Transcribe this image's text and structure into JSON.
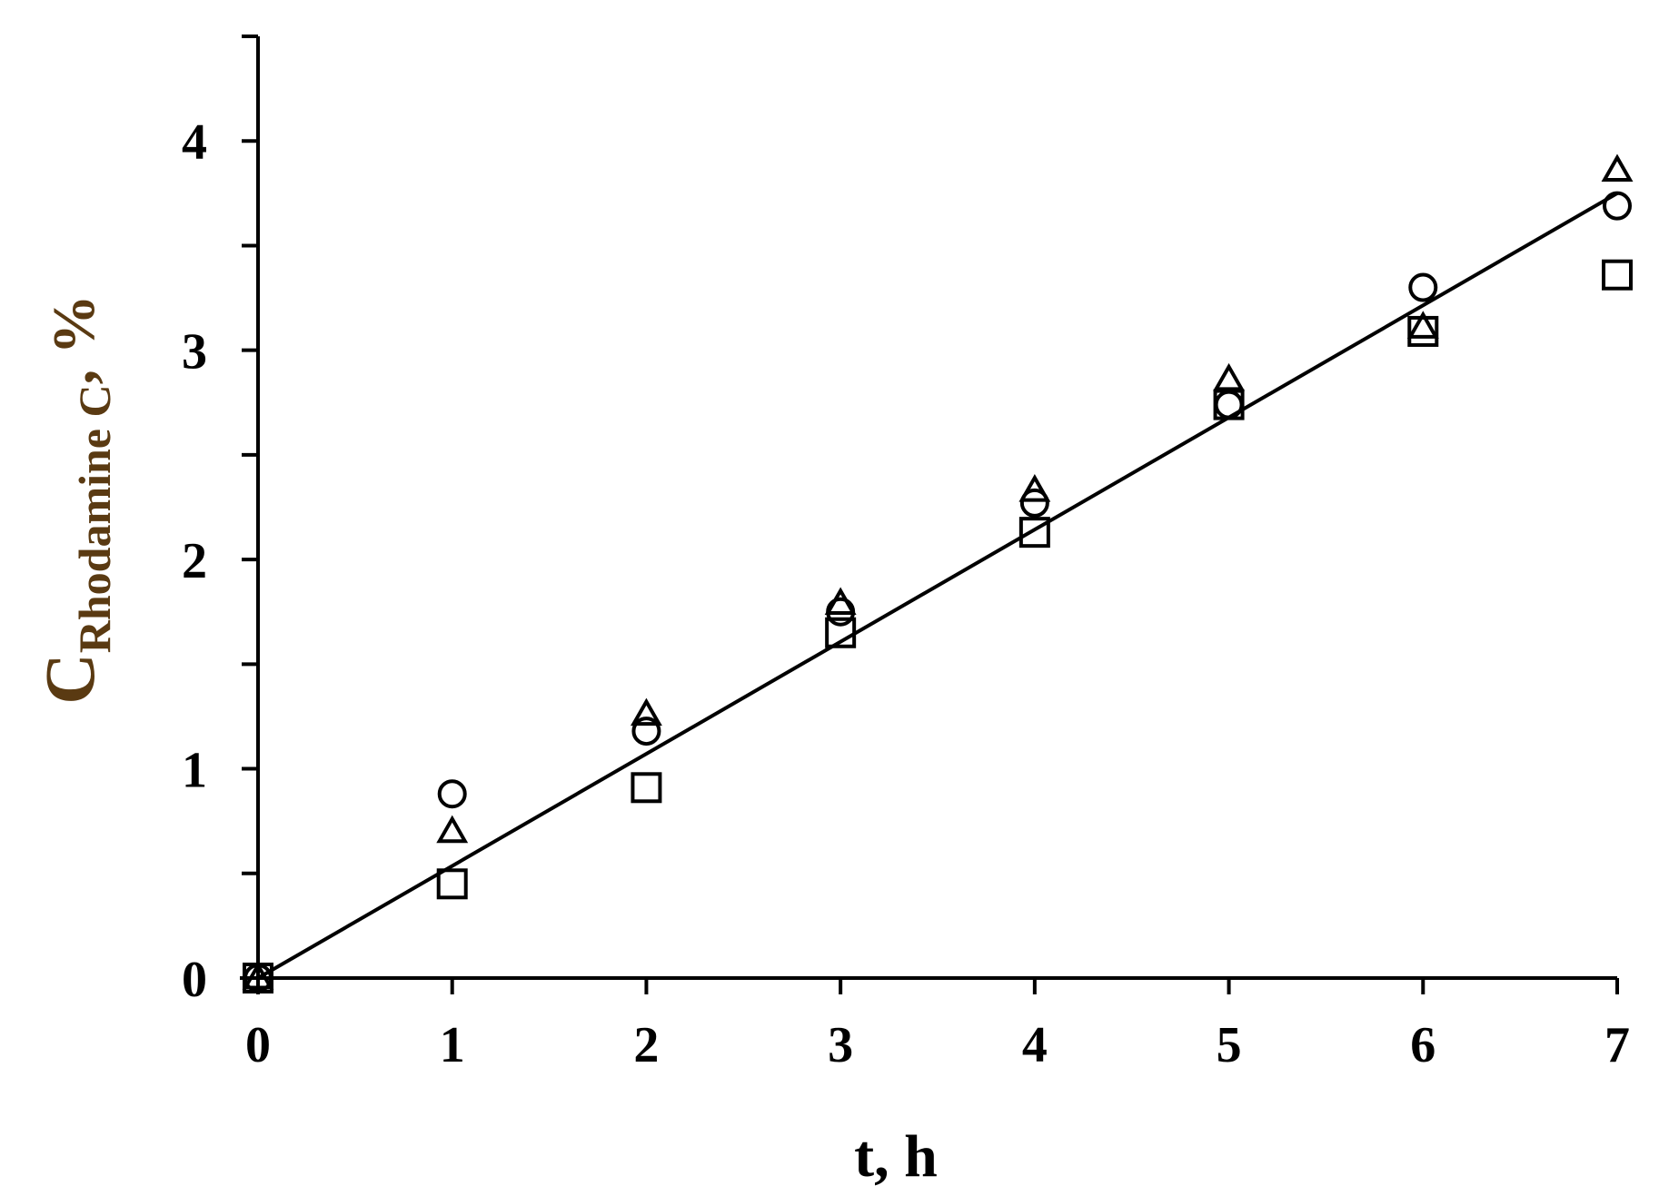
{
  "chart_data": {
    "type": "scatter",
    "title": "",
    "xlabel": "t, h",
    "ylabel": {
      "main": "C",
      "subscript": "Rhodamine C",
      "suffix": ", %",
      "color": "#5a3a12"
    },
    "xlim": [
      0,
      7
    ],
    "ylim": [
      0,
      4.5
    ],
    "x_ticks": [
      0,
      1,
      2,
      3,
      4,
      5,
      6,
      7
    ],
    "y_ticks": [
      0,
      1,
      2,
      3,
      4
    ],
    "y_minor_ticks": [
      0.5,
      1.5,
      2.5,
      3.5,
      4.5
    ],
    "grid": false,
    "legend": "none",
    "series": [
      {
        "marker": "circle",
        "x": [
          0,
          1,
          2,
          3,
          4,
          5,
          6,
          7
        ],
        "y": [
          0,
          0.88,
          1.18,
          1.75,
          2.27,
          2.74,
          3.3,
          3.69
        ]
      },
      {
        "marker": "triangle",
        "x": [
          0,
          1,
          2,
          3,
          4,
          5,
          6,
          7
        ],
        "y": [
          0,
          0.7,
          1.26,
          1.79,
          2.33,
          2.86,
          3.11,
          3.86
        ]
      },
      {
        "marker": "square",
        "x": [
          0,
          1,
          2,
          3,
          4,
          5,
          6,
          7
        ],
        "y": [
          0,
          0.45,
          0.91,
          1.65,
          2.13,
          2.74,
          3.09,
          3.36
        ]
      }
    ],
    "fit_line": {
      "type": "linear",
      "x": [
        0,
        7
      ],
      "y": [
        0,
        3.75
      ]
    }
  }
}
